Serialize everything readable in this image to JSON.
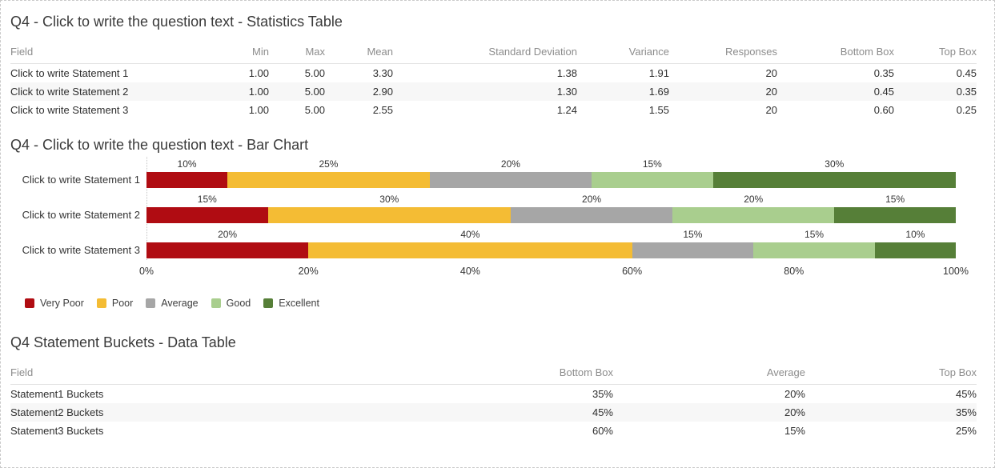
{
  "page": {
    "background": "#ffffff",
    "border_color": "#c9c9c9"
  },
  "stats_table": {
    "title": "Q4 - Click to write the question text - Statistics Table",
    "columns": [
      "Field",
      "Min",
      "Max",
      "Mean",
      "Standard Deviation",
      "Variance",
      "Responses",
      "Bottom Box",
      "Top Box"
    ],
    "rows": [
      {
        "field": "Click to write Statement 1",
        "values": [
          "1.00",
          "5.00",
          "3.30",
          "1.38",
          "1.91",
          "20",
          "0.35",
          "0.45"
        ]
      },
      {
        "field": "Click to write Statement 2",
        "values": [
          "1.00",
          "5.00",
          "2.90",
          "1.30",
          "1.69",
          "20",
          "0.45",
          "0.35"
        ]
      },
      {
        "field": "Click to write Statement 3",
        "values": [
          "1.00",
          "5.00",
          "2.55",
          "1.24",
          "1.55",
          "20",
          "0.60",
          "0.25"
        ]
      }
    ]
  },
  "bar_chart": {
    "title": "Q4 - Click to write the question text - Bar Chart"
  },
  "chart_data": {
    "type": "bar",
    "orientation": "horizontal-stacked",
    "categories": [
      "Click to write Statement 1",
      "Click to write Statement 2",
      "Click to write Statement 3"
    ],
    "series": [
      {
        "name": "Very Poor",
        "color": "#b00c12",
        "values": [
          10,
          15,
          20
        ]
      },
      {
        "name": "Poor",
        "color": "#f4bc34",
        "values": [
          25,
          30,
          40
        ]
      },
      {
        "name": "Average",
        "color": "#a6a6a6",
        "values": [
          20,
          20,
          15
        ]
      },
      {
        "name": "Good",
        "color": "#a9ce8e",
        "values": [
          15,
          20,
          15
        ]
      },
      {
        "name": "Excellent",
        "color": "#567f38",
        "values": [
          30,
          15,
          10
        ]
      }
    ],
    "x_ticks": [
      "0%",
      "20%",
      "40%",
      "60%",
      "80%",
      "100%"
    ],
    "xlim": [
      0,
      100
    ],
    "data_label_suffix": "%",
    "data_labels_position": "above segments, centered",
    "gridlines": "dotted zero line only",
    "legend_position": "bottom-left"
  },
  "buckets_table": {
    "title": "Q4 Statement Buckets - Data Table",
    "columns": [
      "Field",
      "Bottom Box",
      "Average",
      "Top Box"
    ],
    "rows": [
      {
        "field": "Statement1 Buckets",
        "values": [
          "35%",
          "20%",
          "45%"
        ]
      },
      {
        "field": "Statement2 Buckets",
        "values": [
          "45%",
          "20%",
          "35%"
        ]
      },
      {
        "field": "Statement3 Buckets",
        "values": [
          "60%",
          "15%",
          "25%"
        ]
      }
    ]
  }
}
